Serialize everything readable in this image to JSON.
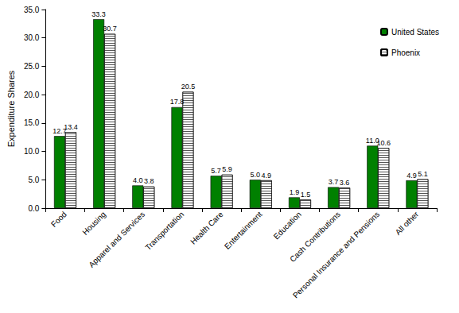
{
  "chart_data": {
    "type": "bar",
    "y_label": "Expenditure Shares",
    "categories": [
      "Food",
      "Housing",
      "Apparel and Services",
      "Transportation",
      "Health Care",
      "Entertainment",
      "Education",
      "Cash Contributions",
      "Personal Insurance and Pensions",
      "All other"
    ],
    "series": [
      {
        "name": "United States",
        "color": "#008000",
        "values": [
          12.7,
          33.3,
          4.0,
          17.8,
          5.7,
          5.0,
          1.9,
          3.7,
          11.0,
          4.9
        ],
        "value_labels": [
          "12.7",
          "33.3",
          "4.0",
          "17.8",
          "5.7",
          "5.0",
          "1.9",
          "3.7",
          "11.0",
          "4.9"
        ]
      },
      {
        "name": "Phoenix",
        "color": "#ffffff",
        "values": [
          13.4,
          30.7,
          3.8,
          20.5,
          5.9,
          4.9,
          1.5,
          3.6,
          10.6,
          5.1
        ],
        "value_labels": [
          "13.4",
          "30.7",
          "3.8",
          "20.5",
          "5.9",
          "4.9",
          "1.5",
          "3.6",
          "10.6",
          "5.1"
        ]
      }
    ],
    "ylim": [
      0,
      35
    ],
    "yticks": [
      {
        "value": 0,
        "label": "0.0"
      },
      {
        "value": 5,
        "label": "5.0"
      },
      {
        "value": 10,
        "label": "10.0"
      },
      {
        "value": 15,
        "label": "15.0"
      },
      {
        "value": 20,
        "label": "20.0"
      },
      {
        "value": 25,
        "label": "25.0"
      },
      {
        "value": 30,
        "label": "30.0"
      },
      {
        "value": 35,
        "label": "35.0"
      }
    ],
    "grid": false,
    "legend": "upper right",
    "data_labels": true
  }
}
